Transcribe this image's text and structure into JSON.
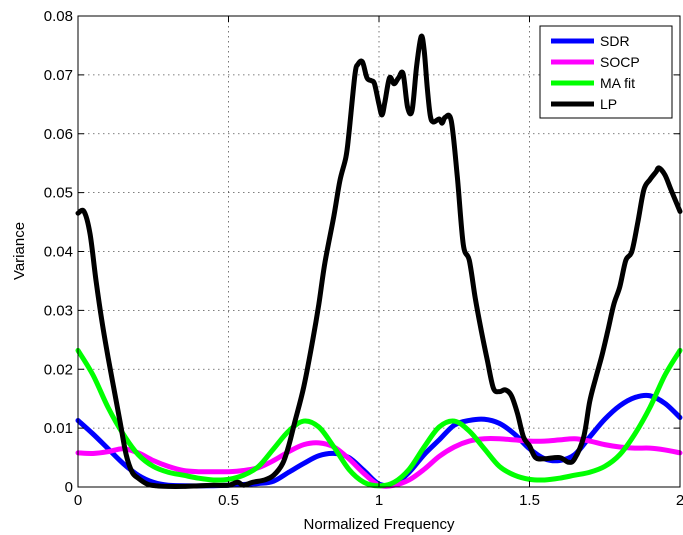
{
  "chart_data": {
    "type": "line",
    "xlabel": "Normalized Frequency",
    "ylabel": "Variance",
    "xlim": [
      0,
      2
    ],
    "ylim": [
      0,
      0.08
    ],
    "x_ticks": [
      "0",
      "0.5",
      "1",
      "1.5",
      "2"
    ],
    "y_ticks": [
      "0",
      "0.01",
      "0.02",
      "0.03",
      "0.04",
      "0.05",
      "0.06",
      "0.07",
      "0.08"
    ],
    "grid": true,
    "legend_position": "top-right",
    "series": [
      {
        "name": "SDR",
        "color": "#0000ff",
        "points": [
          [
            0,
            0.0113
          ],
          [
            0.05,
            0.009
          ],
          [
            0.1,
            0.0065
          ],
          [
            0.15,
            0.004
          ],
          [
            0.2,
            0.002
          ],
          [
            0.25,
            0.0008
          ],
          [
            0.3,
            0.0003
          ],
          [
            0.4,
            0.0002
          ],
          [
            0.5,
            0.0003
          ],
          [
            0.6,
            0.0006
          ],
          [
            0.65,
            0.001
          ],
          [
            0.7,
            0.0025
          ],
          [
            0.75,
            0.004
          ],
          [
            0.8,
            0.0053
          ],
          [
            0.85,
            0.0057
          ],
          [
            0.9,
            0.005
          ],
          [
            0.95,
            0.0028
          ],
          [
            1.0,
            0.0005
          ],
          [
            1.05,
            0.0005
          ],
          [
            1.1,
            0.0025
          ],
          [
            1.15,
            0.0055
          ],
          [
            1.2,
            0.008
          ],
          [
            1.25,
            0.0105
          ],
          [
            1.3,
            0.0113
          ],
          [
            1.35,
            0.0115
          ],
          [
            1.4,
            0.0108
          ],
          [
            1.45,
            0.009
          ],
          [
            1.5,
            0.0065
          ],
          [
            1.55,
            0.0048
          ],
          [
            1.6,
            0.0045
          ],
          [
            1.65,
            0.0055
          ],
          [
            1.7,
            0.0085
          ],
          [
            1.75,
            0.0115
          ],
          [
            1.8,
            0.0138
          ],
          [
            1.85,
            0.0152
          ],
          [
            1.9,
            0.0155
          ],
          [
            1.95,
            0.0142
          ],
          [
            2.0,
            0.0118
          ]
        ]
      },
      {
        "name": "SOCP",
        "color": "#ff00ff",
        "points": [
          [
            0,
            0.0058
          ],
          [
            0.05,
            0.0057
          ],
          [
            0.1,
            0.006
          ],
          [
            0.15,
            0.0065
          ],
          [
            0.2,
            0.0058
          ],
          [
            0.25,
            0.0045
          ],
          [
            0.3,
            0.0035
          ],
          [
            0.35,
            0.0028
          ],
          [
            0.4,
            0.0026
          ],
          [
            0.45,
            0.0026
          ],
          [
            0.5,
            0.0026
          ],
          [
            0.55,
            0.0028
          ],
          [
            0.6,
            0.0033
          ],
          [
            0.65,
            0.0045
          ],
          [
            0.7,
            0.006
          ],
          [
            0.75,
            0.0072
          ],
          [
            0.8,
            0.0075
          ],
          [
            0.85,
            0.0068
          ],
          [
            0.9,
            0.0048
          ],
          [
            0.95,
            0.0023
          ],
          [
            1.0,
            0.0003
          ],
          [
            1.05,
            0.0003
          ],
          [
            1.1,
            0.0012
          ],
          [
            1.15,
            0.003
          ],
          [
            1.2,
            0.0052
          ],
          [
            1.25,
            0.0068
          ],
          [
            1.3,
            0.0078
          ],
          [
            1.35,
            0.0082
          ],
          [
            1.4,
            0.0082
          ],
          [
            1.45,
            0.008
          ],
          [
            1.5,
            0.0078
          ],
          [
            1.55,
            0.0078
          ],
          [
            1.6,
            0.008
          ],
          [
            1.65,
            0.0082
          ],
          [
            1.7,
            0.0078
          ],
          [
            1.75,
            0.0072
          ],
          [
            1.8,
            0.0068
          ],
          [
            1.85,
            0.0066
          ],
          [
            1.9,
            0.0066
          ],
          [
            1.95,
            0.0063
          ],
          [
            2.0,
            0.0058
          ]
        ]
      },
      {
        "name": "MA fit",
        "color": "#00ff00",
        "points": [
          [
            0,
            0.0232
          ],
          [
            0.05,
            0.019
          ],
          [
            0.1,
            0.0135
          ],
          [
            0.15,
            0.009
          ],
          [
            0.2,
            0.0055
          ],
          [
            0.25,
            0.0035
          ],
          [
            0.3,
            0.0025
          ],
          [
            0.35,
            0.002
          ],
          [
            0.4,
            0.0015
          ],
          [
            0.45,
            0.0012
          ],
          [
            0.5,
            0.0013
          ],
          [
            0.55,
            0.002
          ],
          [
            0.6,
            0.0035
          ],
          [
            0.65,
            0.0065
          ],
          [
            0.7,
            0.0095
          ],
          [
            0.75,
            0.0112
          ],
          [
            0.8,
            0.0102
          ],
          [
            0.85,
            0.0068
          ],
          [
            0.9,
            0.003
          ],
          [
            0.95,
            0.0008
          ],
          [
            1.0,
            0.0002
          ],
          [
            1.05,
            0.0008
          ],
          [
            1.1,
            0.003
          ],
          [
            1.15,
            0.0068
          ],
          [
            1.2,
            0.0102
          ],
          [
            1.25,
            0.0112
          ],
          [
            1.3,
            0.0095
          ],
          [
            1.35,
            0.0065
          ],
          [
            1.4,
            0.0035
          ],
          [
            1.45,
            0.002
          ],
          [
            1.5,
            0.0013
          ],
          [
            1.55,
            0.0012
          ],
          [
            1.6,
            0.0015
          ],
          [
            1.65,
            0.002
          ],
          [
            1.7,
            0.0025
          ],
          [
            1.75,
            0.0035
          ],
          [
            1.8,
            0.0055
          ],
          [
            1.85,
            0.009
          ],
          [
            1.9,
            0.0135
          ],
          [
            1.95,
            0.019
          ],
          [
            2.0,
            0.0232
          ]
        ]
      },
      {
        "name": "LP",
        "color": "#000000",
        "points": [
          [
            0,
            0.0465
          ],
          [
            0.02,
            0.0468
          ],
          [
            0.04,
            0.043
          ],
          [
            0.06,
            0.035
          ],
          [
            0.08,
            0.028
          ],
          [
            0.1,
            0.022
          ],
          [
            0.12,
            0.0165
          ],
          [
            0.14,
            0.011
          ],
          [
            0.16,
            0.0055
          ],
          [
            0.18,
            0.0025
          ],
          [
            0.2,
            0.0015
          ],
          [
            0.23,
            0.0005
          ],
          [
            0.26,
            0.0002
          ],
          [
            0.3,
            0.0001
          ],
          [
            0.35,
            0.0001
          ],
          [
            0.4,
            0.0002
          ],
          [
            0.45,
            0.0003
          ],
          [
            0.5,
            0.0003
          ],
          [
            0.53,
            0.0008
          ],
          [
            0.55,
            0.0003
          ],
          [
            0.58,
            0.0008
          ],
          [
            0.62,
            0.0012
          ],
          [
            0.65,
            0.002
          ],
          [
            0.68,
            0.004
          ],
          [
            0.7,
            0.007
          ],
          [
            0.72,
            0.011
          ],
          [
            0.75,
            0.017
          ],
          [
            0.78,
            0.025
          ],
          [
            0.8,
            0.031
          ],
          [
            0.82,
            0.038
          ],
          [
            0.85,
            0.046
          ],
          [
            0.87,
            0.052
          ],
          [
            0.89,
            0.056
          ],
          [
            0.9,
            0.06
          ],
          [
            0.92,
            0.07
          ],
          [
            0.93,
            0.0718
          ],
          [
            0.945,
            0.0722
          ],
          [
            0.96,
            0.0695
          ],
          [
            0.975,
            0.069
          ],
          [
            0.985,
            0.0685
          ],
          [
            1.0,
            0.065
          ],
          [
            1.01,
            0.0632
          ],
          [
            1.02,
            0.0655
          ],
          [
            1.035,
            0.0695
          ],
          [
            1.05,
            0.0685
          ],
          [
            1.065,
            0.0695
          ],
          [
            1.08,
            0.0702
          ],
          [
            1.095,
            0.0645
          ],
          [
            1.11,
            0.064
          ],
          [
            1.125,
            0.0715
          ],
          [
            1.14,
            0.0765
          ],
          [
            1.15,
            0.0742
          ],
          [
            1.16,
            0.068
          ],
          [
            1.17,
            0.0632
          ],
          [
            1.18,
            0.062
          ],
          [
            1.2,
            0.0625
          ],
          [
            1.21,
            0.0618
          ],
          [
            1.22,
            0.0628
          ],
          [
            1.24,
            0.0622
          ],
          [
            1.26,
            0.0528
          ],
          [
            1.28,
            0.0412
          ],
          [
            1.3,
            0.0385
          ],
          [
            1.32,
            0.032
          ],
          [
            1.34,
            0.0265
          ],
          [
            1.36,
            0.0215
          ],
          [
            1.38,
            0.0168
          ],
          [
            1.4,
            0.0162
          ],
          [
            1.42,
            0.0165
          ],
          [
            1.44,
            0.0155
          ],
          [
            1.46,
            0.0125
          ],
          [
            1.48,
            0.0085
          ],
          [
            1.5,
            0.007
          ],
          [
            1.52,
            0.005
          ],
          [
            1.55,
            0.0048
          ],
          [
            1.6,
            0.005
          ],
          [
            1.63,
            0.0042
          ],
          [
            1.65,
            0.0048
          ],
          [
            1.68,
            0.0085
          ],
          [
            1.7,
            0.0145
          ],
          [
            1.72,
            0.0185
          ],
          [
            1.74,
            0.0222
          ],
          [
            1.76,
            0.0265
          ],
          [
            1.78,
            0.031
          ],
          [
            1.8,
            0.034
          ],
          [
            1.82,
            0.0385
          ],
          [
            1.84,
            0.04
          ],
          [
            1.86,
            0.045
          ],
          [
            1.88,
            0.0505
          ],
          [
            1.9,
            0.0522
          ],
          [
            1.92,
            0.0535
          ],
          [
            1.93,
            0.0542
          ],
          [
            1.95,
            0.053
          ],
          [
            1.97,
            0.0505
          ],
          [
            2.0,
            0.0468
          ]
        ]
      }
    ]
  }
}
